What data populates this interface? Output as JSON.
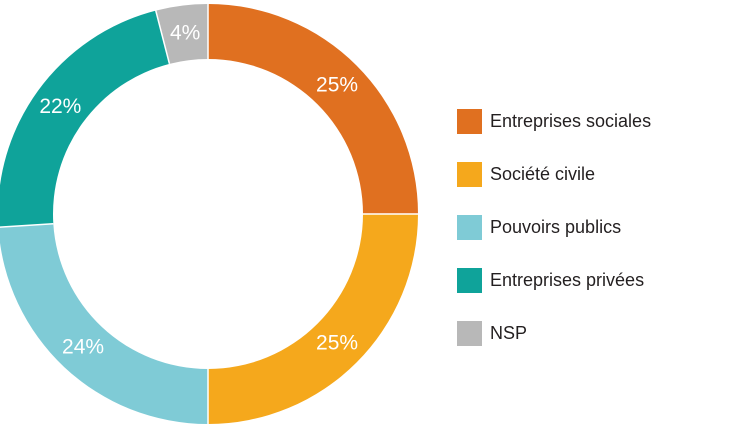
{
  "chart_data": {
    "type": "pie",
    "variant": "donut",
    "title": "",
    "legend_position": "right",
    "slices": [
      {
        "label": "Entreprises sociales",
        "value": 25,
        "display": "25%",
        "color": "#e07020"
      },
      {
        "label": "Société civile",
        "value": 25,
        "display": "25%",
        "color": "#f5a81c"
      },
      {
        "label": "Pouvoirs publics",
        "value": 24,
        "display": "24%",
        "color": "#7fcbd6"
      },
      {
        "label": "Entreprises privées",
        "value": 22,
        "display": "22%",
        "color": "#0fa39a"
      },
      {
        "label": "NSP",
        "value": 4,
        "display": "4%",
        "color": "#b8b8b8"
      }
    ]
  }
}
